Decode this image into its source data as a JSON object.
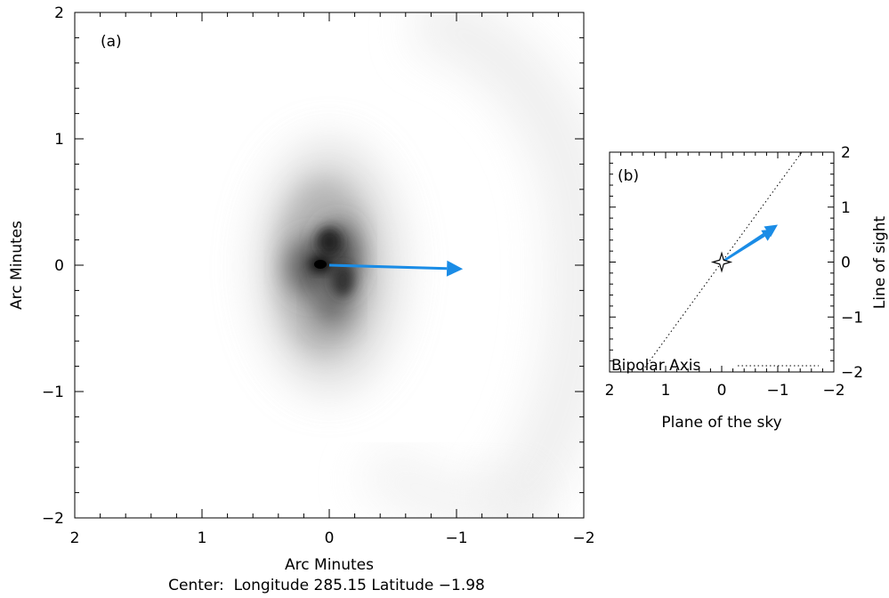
{
  "chart_data": [
    {
      "type": "scatter",
      "panel_label": "(a)",
      "xlabel": "Arc Minutes",
      "ylabel": "Arc Minutes",
      "caption": "Center:  Longitude 285.15 Latitude −1.98",
      "xlim": [
        2,
        -2
      ],
      "ylim": [
        -2,
        2
      ],
      "x_ticks": [
        2,
        1,
        0,
        -1,
        -2
      ],
      "x_tick_labels": [
        "2",
        "1",
        "0",
        "−1",
        "−2"
      ],
      "y_ticks": [
        -2,
        -1,
        0,
        1,
        2
      ],
      "y_tick_labels": [
        "−2",
        "−1",
        "0",
        "1",
        "2"
      ],
      "image": "grayscale nebula centered at (0, 0)",
      "arrow": {
        "from": [
          0,
          0
        ],
        "to": [
          -1.05,
          -0.03
        ],
        "color": "#1a8ce6"
      }
    },
    {
      "type": "line",
      "panel_label": "(b)",
      "xlabel": "Plane of the sky",
      "ylabel": "Line of sight",
      "xlim": [
        2,
        -2
      ],
      "ylim": [
        -2,
        2
      ],
      "x_ticks": [
        2,
        1,
        0,
        -1,
        -2
      ],
      "x_tick_labels": [
        "2",
        "1",
        "0",
        "−1",
        "−2"
      ],
      "y_ticks": [
        -2,
        -1,
        0,
        1,
        2
      ],
      "y_tick_labels": [
        "−2",
        "−1",
        "0",
        "1",
        "2"
      ],
      "series": [
        {
          "name": "Bipolar Axis",
          "style": "dotted",
          "x": [
            2,
            -2
          ],
          "y": [
            -2.8,
            2.8
          ]
        }
      ],
      "legend_label": "Bipolar Axis",
      "legend_position": "bottom",
      "star_marker": [
        0,
        0
      ],
      "arrows": [
        {
          "from": [
            0,
            0
          ],
          "to": [
            -1.0,
            0.68
          ],
          "color": "#1a8ce6"
        },
        {
          "from": [
            0,
            0
          ],
          "to": [
            -0.95,
            0.6
          ],
          "color": "#1a8ce6"
        }
      ]
    }
  ]
}
